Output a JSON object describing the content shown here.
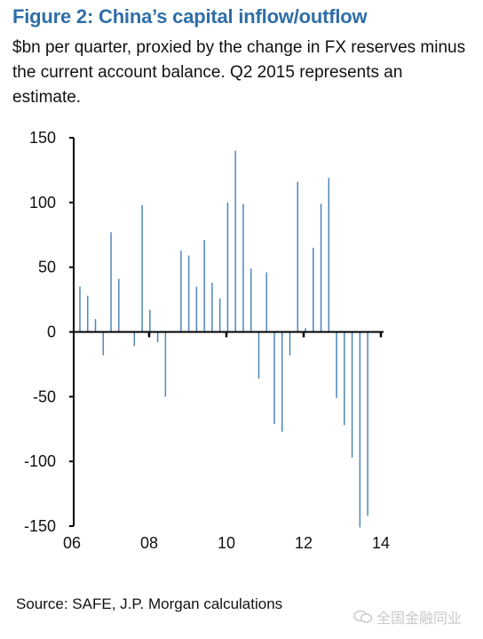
{
  "figure": {
    "title": "Figure 2: China’s capital inflow/outflow",
    "subtitle": "$bn per quarter, proxied by the change in FX reserves minus the current account balance. Q2 2015 represents an estimate.",
    "source": "Source: SAFE, J.P. Morgan calculations"
  },
  "watermark": {
    "text": "全国金融同业",
    "icon": "chat-bubble-logo-icon"
  },
  "colors": {
    "bar": "#4f86bd",
    "axis": "#000000",
    "title": "#2f6ea8"
  },
  "chart_data": {
    "type": "bar",
    "title": "Figure 2: China’s capital inflow/outflow",
    "ylabel": "$bn per quarter",
    "xlabel": "",
    "ylim": [
      -150,
      150
    ],
    "yticks": [
      150,
      100,
      50,
      0,
      -50,
      -100,
      -150
    ],
    "xticks": [
      "06",
      "08",
      "10",
      "12",
      "14"
    ],
    "grid": false,
    "legend": "none",
    "categories": [
      "2006Q1",
      "2006Q2",
      "2006Q3",
      "2006Q4",
      "2007Q1",
      "2007Q2",
      "2007Q3",
      "2007Q4",
      "2008Q1",
      "2008Q2",
      "2008Q3",
      "2008Q4",
      "2009Q1",
      "2009Q2",
      "2009Q3",
      "2009Q4",
      "2010Q1",
      "2010Q2",
      "2010Q3",
      "2010Q4",
      "2011Q1",
      "2011Q2",
      "2011Q3",
      "2011Q4",
      "2012Q1",
      "2012Q2",
      "2012Q3",
      "2012Q4",
      "2013Q1",
      "2013Q2",
      "2013Q3",
      "2013Q4",
      "2014Q1",
      "2014Q2",
      "2014Q3",
      "2014Q4",
      "2015Q1",
      "2015Q2"
    ],
    "values": [
      35,
      28,
      10,
      -18,
      77,
      41,
      0,
      -11,
      98,
      17,
      -8,
      -50,
      0,
      63,
      59,
      35,
      71,
      38,
      26,
      100,
      140,
      99,
      49,
      -36,
      46,
      -71,
      -77,
      -18,
      116,
      3,
      65,
      99,
      119,
      -51,
      -72,
      -97,
      -151,
      -142
    ]
  }
}
